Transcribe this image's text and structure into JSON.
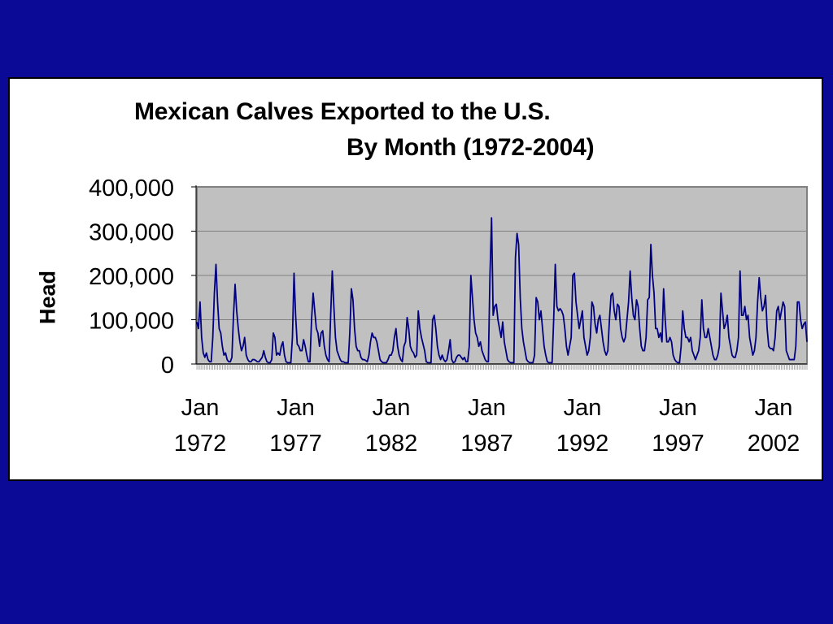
{
  "chart_data": {
    "type": "line",
    "title": "Mexican Calves Exported to the U.S.",
    "subtitle": "By Month (1972-2004)",
    "xlabel": "",
    "ylabel": "Head",
    "ylim": [
      0,
      400000
    ],
    "yticks": [
      {
        "value": 0,
        "label": "0"
      },
      {
        "value": 100000,
        "label": "100,000"
      },
      {
        "value": 200000,
        "label": "200,000"
      },
      {
        "value": 300000,
        "label": "300,000"
      },
      {
        "value": 400000,
        "label": "400,000"
      }
    ],
    "xticks": [
      {
        "month_index": 0,
        "label_top": "Jan",
        "label_bottom": "1972"
      },
      {
        "month_index": 60,
        "label_top": "Jan",
        "label_bottom": "1977"
      },
      {
        "month_index": 120,
        "label_top": "Jan",
        "label_bottom": "1982"
      },
      {
        "month_index": 180,
        "label_top": "Jan",
        "label_bottom": "1987"
      },
      {
        "month_index": 240,
        "label_top": "Jan",
        "label_bottom": "1992"
      },
      {
        "month_index": 300,
        "label_top": "Jan",
        "label_bottom": "1997"
      },
      {
        "month_index": 360,
        "label_top": "Jan",
        "label_bottom": "2002"
      }
    ],
    "grid": true,
    "colors": {
      "line": "#000080",
      "plot_bg": "#c0c0c0",
      "gridline": "#808080"
    },
    "series": [
      {
        "values": [
          95000,
          80000,
          140000,
          60000,
          25000,
          15000,
          25000,
          10000,
          5000,
          5000,
          60000,
          160000,
          225000,
          140000,
          80000,
          70000,
          40000,
          20000,
          25000,
          10000,
          5000,
          5000,
          15000,
          110000,
          180000,
          120000,
          80000,
          50000,
          30000,
          40000,
          60000,
          20000,
          10000,
          5000,
          5000,
          10000,
          10000,
          8000,
          5000,
          5000,
          10000,
          15000,
          30000,
          15000,
          5000,
          3000,
          3000,
          10000,
          70000,
          60000,
          20000,
          25000,
          20000,
          40000,
          50000,
          20000,
          5000,
          3000,
          3000,
          3000,
          60000,
          205000,
          110000,
          45000,
          40000,
          30000,
          30000,
          55000,
          40000,
          20000,
          5000,
          5000,
          100000,
          160000,
          120000,
          80000,
          70000,
          40000,
          70000,
          75000,
          40000,
          20000,
          10000,
          5000,
          110000,
          210000,
          130000,
          60000,
          30000,
          20000,
          10000,
          5000,
          5000,
          3000,
          3000,
          3000,
          70000,
          170000,
          145000,
          80000,
          40000,
          30000,
          30000,
          15000,
          10000,
          10000,
          8000,
          5000,
          20000,
          50000,
          70000,
          60000,
          60000,
          50000,
          30000,
          10000,
          5000,
          3000,
          3000,
          3000,
          10000,
          20000,
          20000,
          30000,
          60000,
          80000,
          40000,
          20000,
          10000,
          5000,
          40000,
          50000,
          105000,
          80000,
          40000,
          30000,
          25000,
          15000,
          20000,
          120000,
          80000,
          60000,
          45000,
          30000,
          5000,
          3000,
          3000,
          3000,
          100000,
          110000,
          80000,
          40000,
          20000,
          10000,
          20000,
          10000,
          5000,
          10000,
          30000,
          55000,
          10000,
          3000,
          5000,
          15000,
          20000,
          20000,
          15000,
          10000,
          15000,
          5000,
          5000,
          40000,
          200000,
          150000,
          100000,
          70000,
          60000,
          40000,
          50000,
          30000,
          20000,
          10000,
          5000,
          5000,
          200000,
          330000,
          110000,
          130000,
          135000,
          100000,
          80000,
          60000,
          95000,
          50000,
          30000,
          10000,
          5000,
          3000,
          3000,
          3000,
          240000,
          295000,
          270000,
          150000,
          80000,
          50000,
          30000,
          10000,
          5000,
          3000,
          3000,
          3000,
          20000,
          150000,
          140000,
          100000,
          120000,
          80000,
          40000,
          20000,
          5000,
          3000,
          3000,
          3000,
          100000,
          225000,
          130000,
          120000,
          125000,
          120000,
          110000,
          80000,
          40000,
          20000,
          40000,
          60000,
          200000,
          205000,
          140000,
          110000,
          80000,
          100000,
          120000,
          60000,
          40000,
          20000,
          30000,
          60000,
          140000,
          130000,
          90000,
          70000,
          100000,
          110000,
          80000,
          50000,
          30000,
          20000,
          30000,
          100000,
          155000,
          160000,
          120000,
          100000,
          135000,
          130000,
          80000,
          60000,
          50000,
          60000,
          100000,
          140000,
          210000,
          150000,
          110000,
          100000,
          145000,
          130000,
          80000,
          40000,
          30000,
          30000,
          60000,
          145000,
          150000,
          270000,
          200000,
          160000,
          80000,
          80000,
          60000,
          70000,
          50000,
          170000,
          100000,
          50000,
          50000,
          60000,
          50000,
          20000,
          10000,
          5000,
          3000,
          3000,
          40000,
          120000,
          80000,
          60000,
          60000,
          50000,
          60000,
          30000,
          20000,
          10000,
          20000,
          30000,
          60000,
          145000,
          80000,
          60000,
          60000,
          80000,
          60000,
          40000,
          20000,
          10000,
          10000,
          20000,
          40000,
          160000,
          120000,
          80000,
          90000,
          110000,
          60000,
          40000,
          20000,
          15000,
          15000,
          30000,
          60000,
          210000,
          110000,
          110000,
          130000,
          100000,
          110000,
          60000,
          40000,
          20000,
          30000,
          60000,
          140000,
          195000,
          150000,
          120000,
          130000,
          155000,
          80000,
          40000,
          35000,
          35000,
          30000,
          60000,
          120000,
          130000,
          100000,
          120000,
          140000,
          130000,
          30000,
          20000,
          10000,
          10000,
          10000,
          10000,
          40000,
          140000,
          140000,
          100000,
          80000,
          90000,
          95000,
          50000
        ]
      }
    ]
  }
}
